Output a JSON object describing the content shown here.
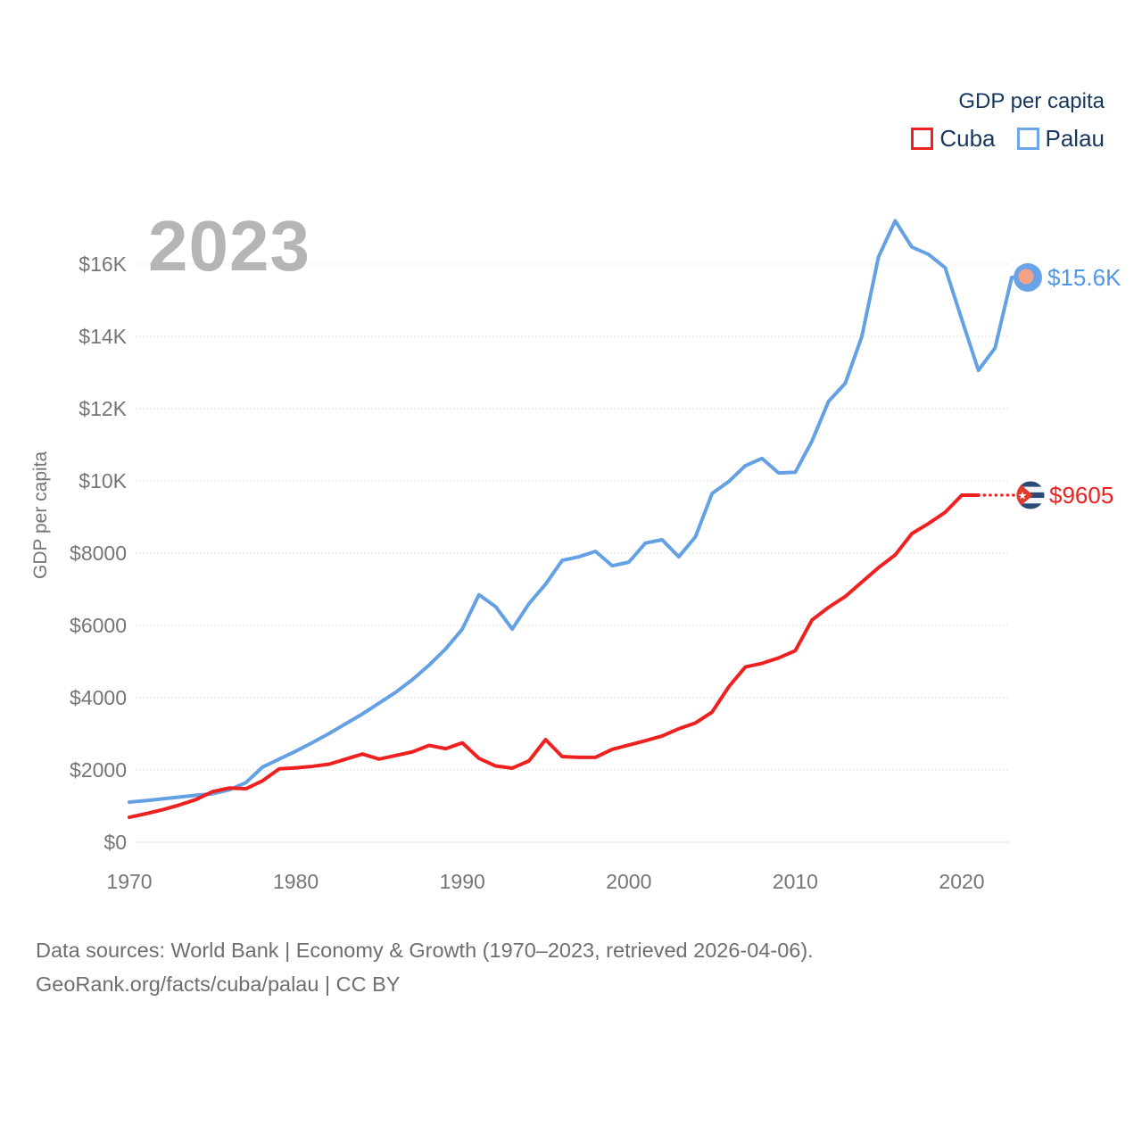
{
  "watermark": "2023",
  "legend": {
    "title": "GDP per capita",
    "items": [
      {
        "label": "Cuba",
        "color": "#ee2020"
      },
      {
        "label": "Palau",
        "color": "#6aa7e8"
      }
    ]
  },
  "footer": {
    "line1": "Data sources: World Bank | Economy & Growth (1970–2023, retrieved 2026-04-06).",
    "line2": "GeoRank.org/facts/cuba/palau | CC BY"
  },
  "chart_data": {
    "type": "line",
    "title": "GDP per capita",
    "ylabel": "GDP per capita",
    "xlabel": "",
    "ylim": [
      0,
      17800
    ],
    "grid": true,
    "legend_position": "top-right",
    "x_ticks": [
      1970,
      1980,
      1990,
      2000,
      2010,
      2020
    ],
    "y_ticks": [
      {
        "value": 0,
        "label": "$0"
      },
      {
        "value": 2000,
        "label": "$2000"
      },
      {
        "value": 4000,
        "label": "$4000"
      },
      {
        "value": 6000,
        "label": "$6000"
      },
      {
        "value": 8000,
        "label": "$8000"
      },
      {
        "value": 10000,
        "label": "$10K"
      },
      {
        "value": 12000,
        "label": "$12K"
      },
      {
        "value": 14000,
        "label": "$14K"
      },
      {
        "value": 16000,
        "label": "$16K"
      }
    ],
    "x": [
      1970,
      1971,
      1972,
      1973,
      1974,
      1975,
      1976,
      1977,
      1978,
      1979,
      1980,
      1981,
      1982,
      1983,
      1984,
      1985,
      1986,
      1987,
      1988,
      1989,
      1990,
      1991,
      1992,
      1993,
      1994,
      1995,
      1996,
      1997,
      1998,
      1999,
      2000,
      2001,
      2002,
      2003,
      2004,
      2005,
      2006,
      2007,
      2008,
      2009,
      2010,
      2011,
      2012,
      2013,
      2014,
      2015,
      2016,
      2017,
      2018,
      2019,
      2020,
      2021,
      2022,
      2023
    ],
    "series": [
      {
        "name": "Cuba",
        "color": "#ee2020",
        "label_color": "#ee2020",
        "end_label": "$9605",
        "end_value": 9605,
        "dashed_from_year": 2021,
        "values": [
          690,
          790,
          900,
          1030,
          1180,
          1400,
          1500,
          1480,
          1700,
          2030,
          2060,
          2100,
          2160,
          2300,
          2440,
          2300,
          2400,
          2500,
          2680,
          2590,
          2750,
          2320,
          2110,
          2050,
          2250,
          2840,
          2370,
          2350,
          2350,
          2570,
          2690,
          2810,
          2940,
          3140,
          3300,
          3600,
          4300,
          4850,
          4950,
          5100,
          5300,
          6150,
          6500,
          6800,
          7200,
          7600,
          7950,
          8540,
          8820,
          9130,
          9605,
          9605,
          9605,
          9605
        ]
      },
      {
        "name": "Palau",
        "color": "#64a1e4",
        "label_color": "#4f97e8",
        "end_label": "$15.6K",
        "end_value": 15630,
        "values": [
          1110,
          1150,
          1200,
          1250,
          1300,
          1340,
          1450,
          1650,
          2080,
          2300,
          2520,
          2760,
          3010,
          3280,
          3550,
          3850,
          4150,
          4500,
          4900,
          5350,
          5900,
          6850,
          6520,
          5900,
          6600,
          7140,
          7800,
          7900,
          8050,
          7650,
          7750,
          8280,
          8370,
          7900,
          8450,
          9650,
          9980,
          10420,
          10620,
          10220,
          10240,
          11100,
          12200,
          12700,
          14000,
          16200,
          17200,
          16470,
          16270,
          15900,
          14470,
          13060,
          13680,
          15630
        ]
      }
    ],
    "end_markers": {
      "palau": {
        "style": "palau-flag",
        "outer": "#6aa4e8",
        "inner": "#f5a287"
      },
      "cuba": {
        "style": "cuba-flag",
        "stripe": "#2c4a76",
        "white": "#f2f5f8",
        "triangle": "#e0392d",
        "star": "#ffffff"
      }
    }
  }
}
